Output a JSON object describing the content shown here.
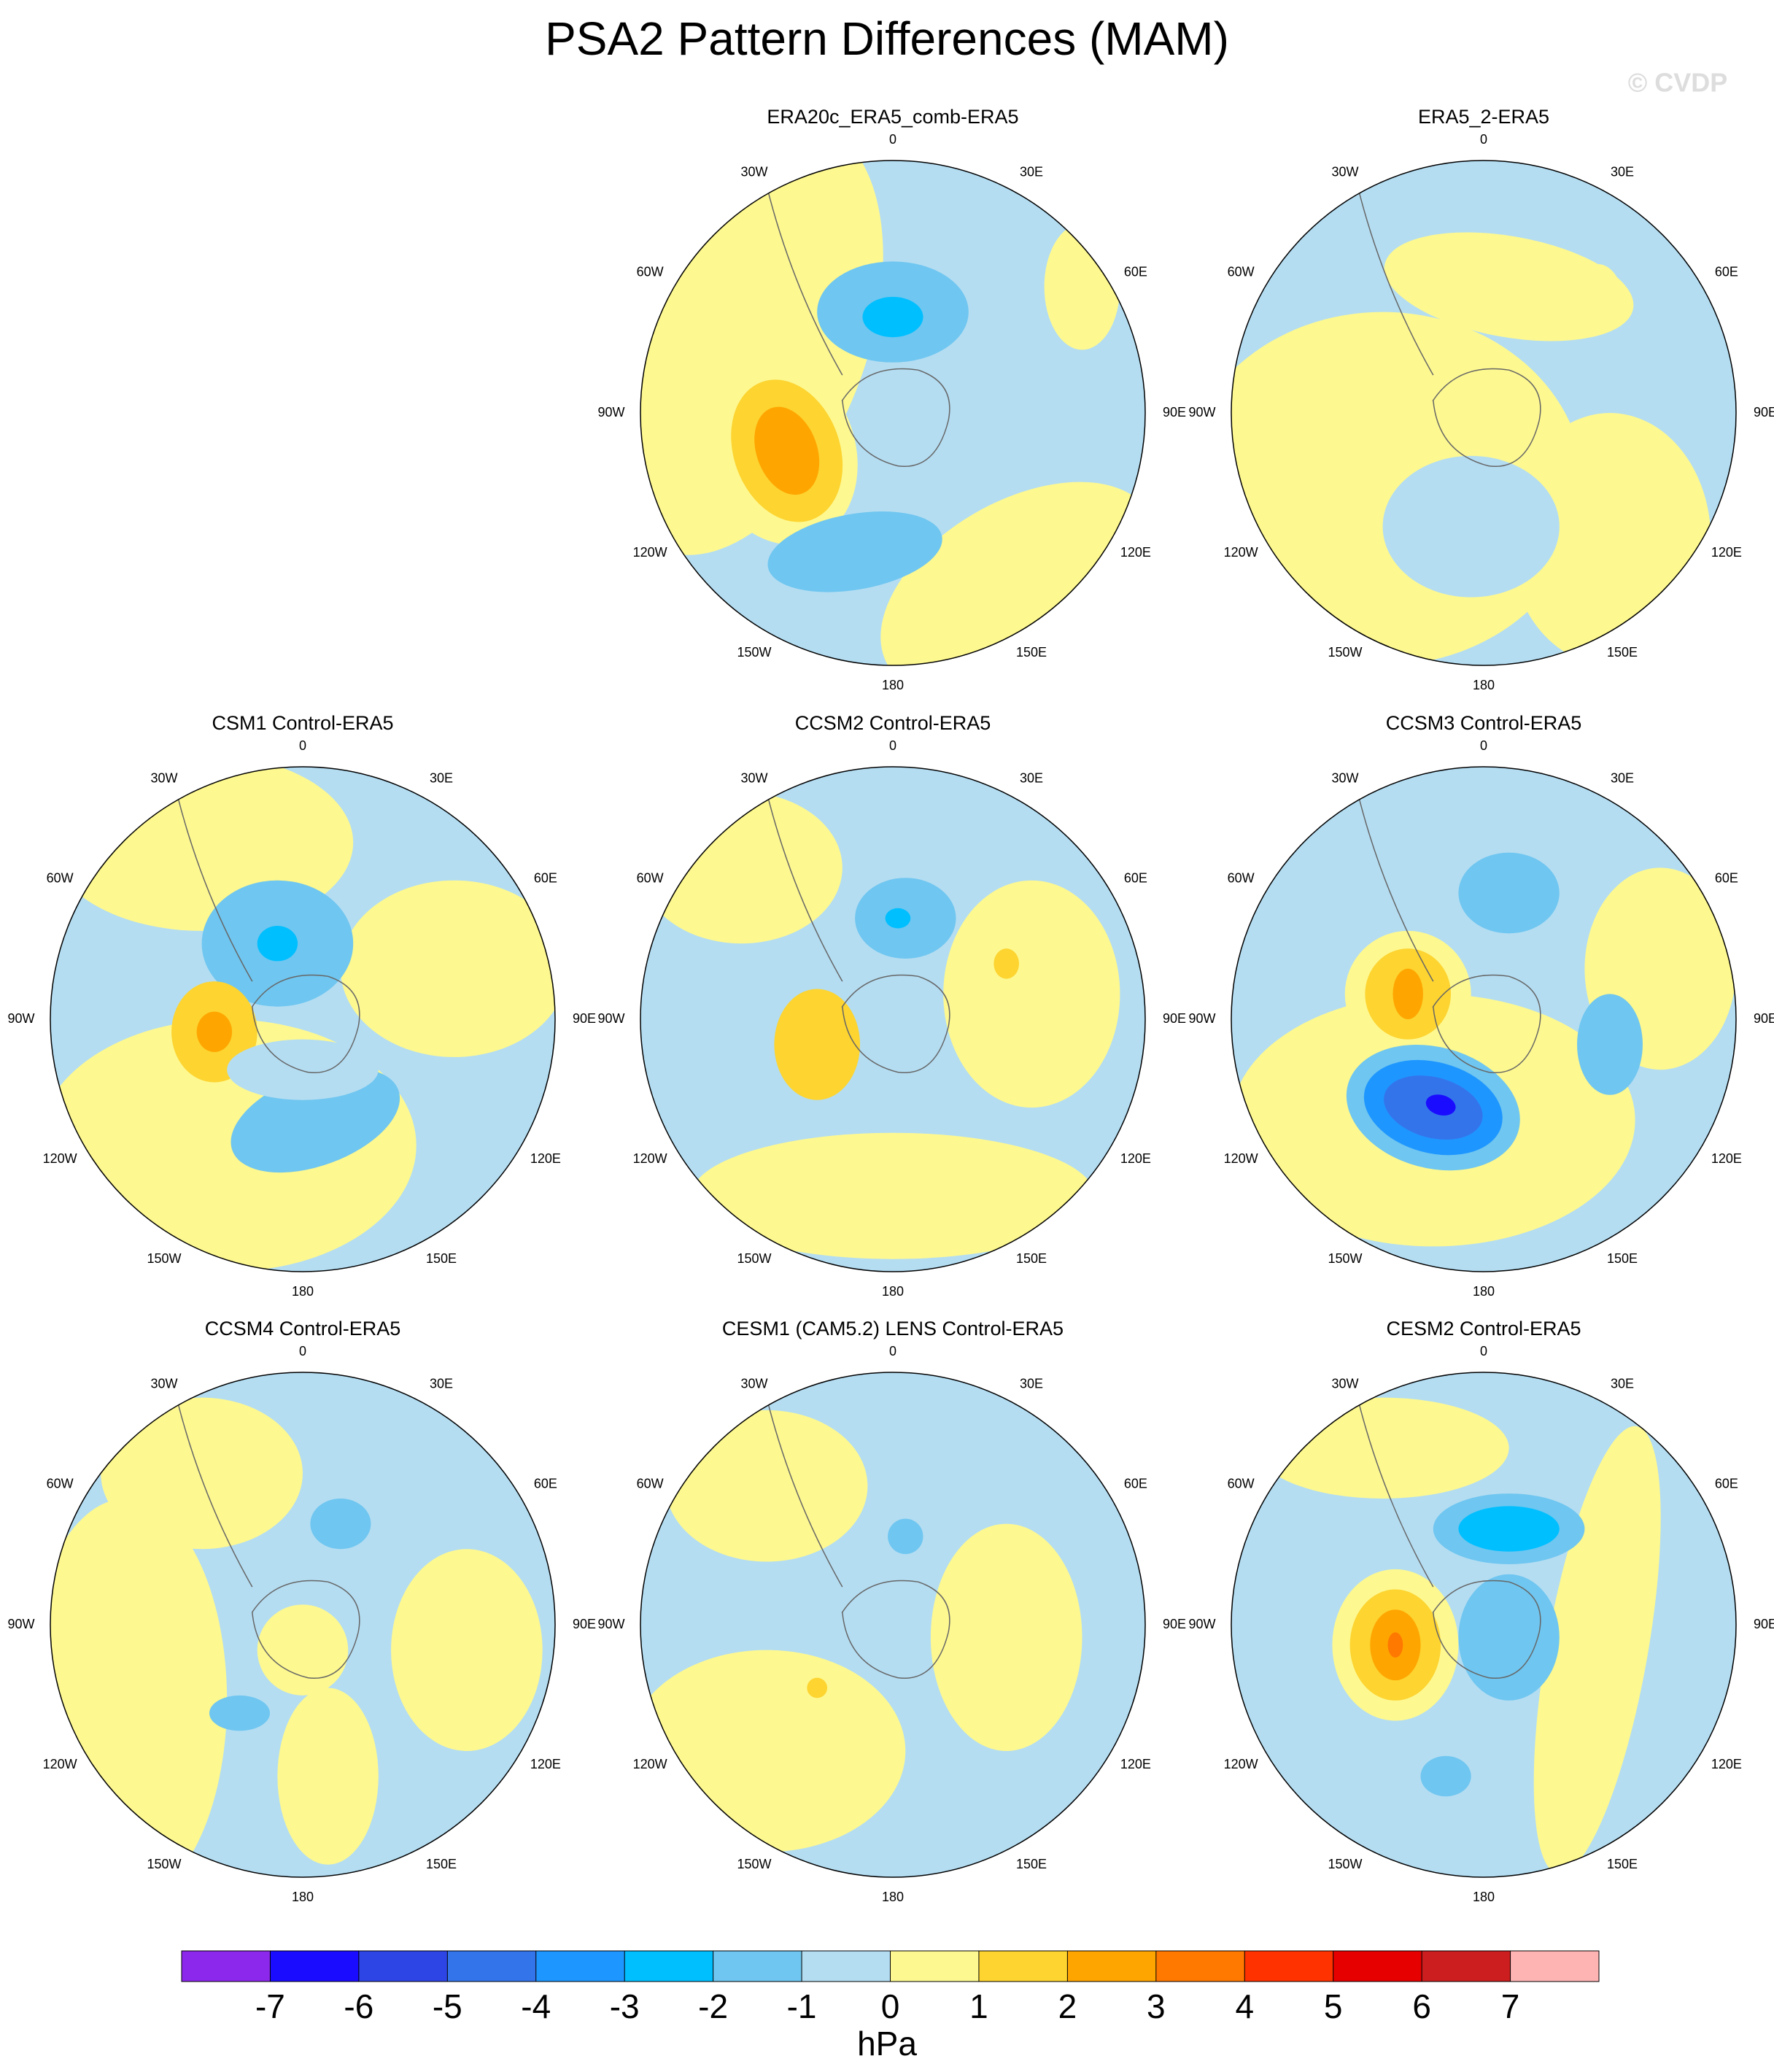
{
  "title": "PSA2 Pattern Differences (MAM)",
  "watermark": "© CVDP",
  "panels": [
    {
      "title": "ERA20c_ERA5_comb-ERA5"
    },
    {
      "title": "ERA5_2-ERA5"
    },
    {
      "title": "CSM1 Control-ERA5"
    },
    {
      "title": "CCSM2 Control-ERA5"
    },
    {
      "title": "CCSM3 Control-ERA5"
    },
    {
      "title": "CCSM4 Control-ERA5"
    },
    {
      "title": "CESM1 (CAM5.2) LENS Control-ERA5"
    },
    {
      "title": "CESM2 Control-ERA5"
    }
  ],
  "longitude_labels": [
    "0",
    "30E",
    "60E",
    "90E",
    "120E",
    "150E",
    "180",
    "150W",
    "120W",
    "90W",
    "60W",
    "30W"
  ],
  "colorbar": {
    "levels": [
      -7,
      -6,
      -5,
      -4,
      -3,
      -2,
      -1,
      0,
      1,
      2,
      3,
      4,
      5,
      6,
      7
    ],
    "colors": [
      "#8c28ec",
      "#1a0dff",
      "#2e45e6",
      "#3474eb",
      "#1e96ff",
      "#00bfff",
      "#6fc6f0",
      "#b4ddf2",
      "#fdf890",
      "#fdd430",
      "#ffa500",
      "#ff7800",
      "#ff3200",
      "#e60000",
      "#cc1e1e",
      "#ffb4b4"
    ],
    "unit": "hPa"
  }
}
